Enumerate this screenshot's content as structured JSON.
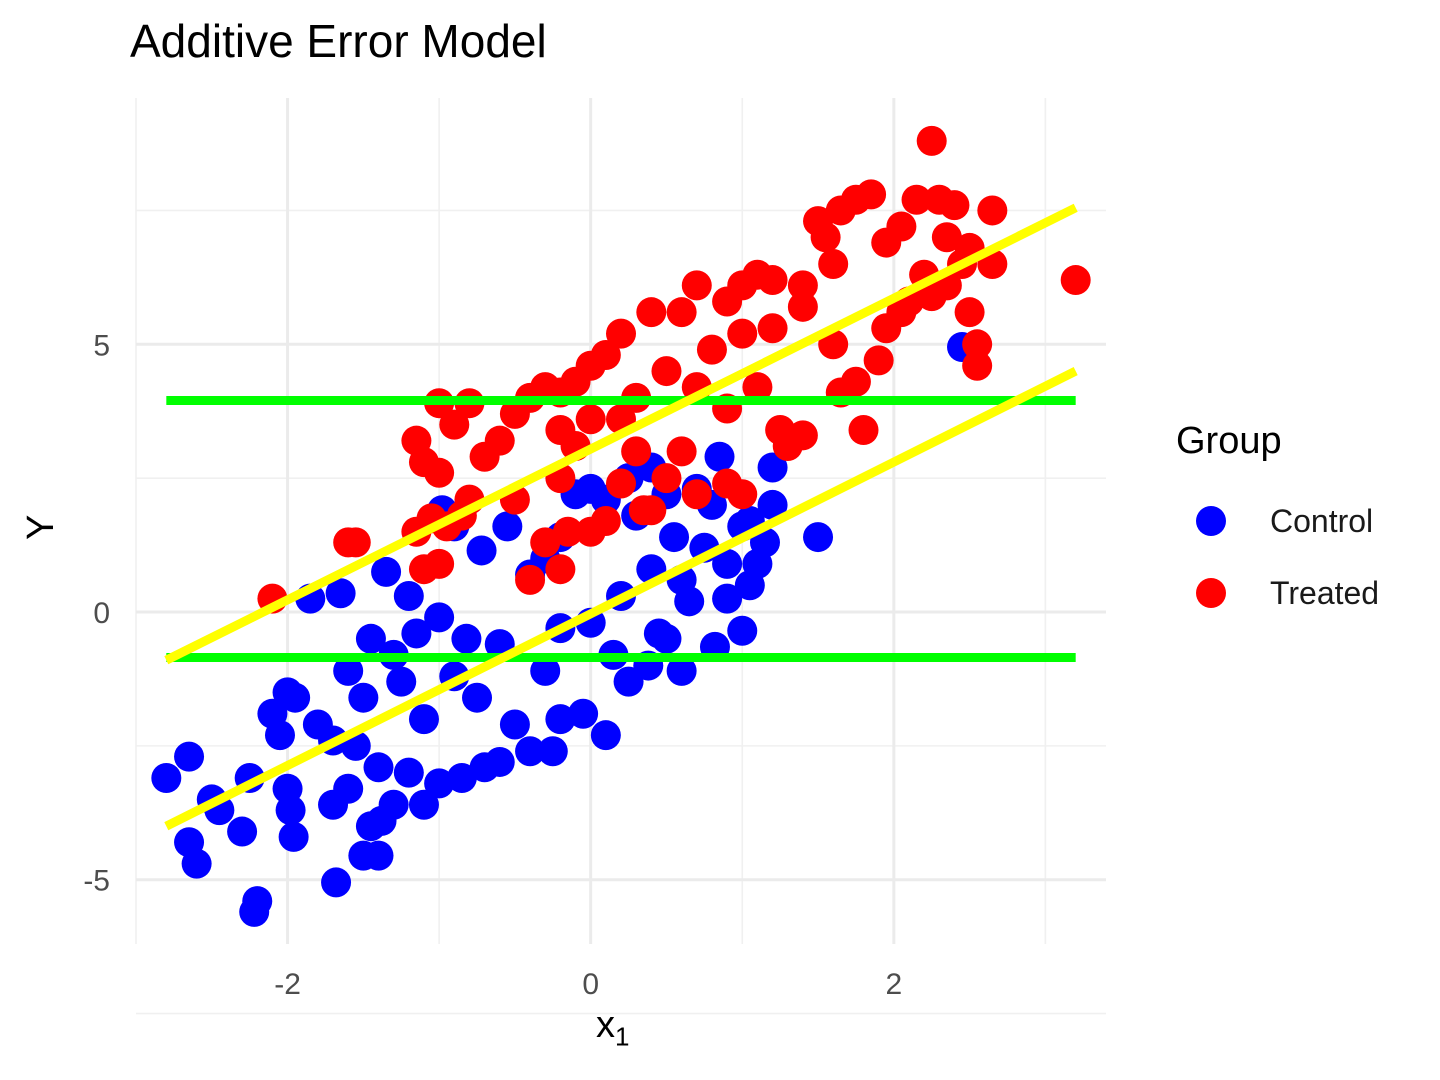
{
  "chart_data": {
    "type": "scatter",
    "title": "Additive Error Model",
    "xlabel": "x",
    "xlabel_sub": "1",
    "ylabel": "Y",
    "xlim": [
      -3.0,
      3.4
    ],
    "ylim": [
      -6.2,
      9.6
    ],
    "x_ticks": [
      -2,
      0,
      2
    ],
    "y_ticks": [
      -5,
      0,
      5
    ],
    "grid": true,
    "legend_position": "right",
    "legend_title": "Group",
    "series": [
      {
        "name": "Control",
        "color": "#0000ff"
      },
      {
        "name": "Treated",
        "color": "#ff0000"
      }
    ],
    "reference_lines": [
      {
        "kind": "horizontal",
        "color": "#00ff00",
        "y": 3.95,
        "x_from": -2.8,
        "x_to": 3.2
      },
      {
        "kind": "horizontal",
        "color": "#00ff00",
        "y": -0.85,
        "x_from": -2.8,
        "x_to": 3.2
      },
      {
        "kind": "fit",
        "color": "#ffff00",
        "x_from": -2.8,
        "y_from": -0.9,
        "x_to": 3.2,
        "y_to": 7.55
      },
      {
        "kind": "fit",
        "color": "#ffff00",
        "x_from": -2.8,
        "y_from": -4.0,
        "x_to": 3.2,
        "y_to": 4.5
      }
    ],
    "points": {
      "Control": [
        [
          -2.8,
          -3.1
        ],
        [
          -2.65,
          -2.7
        ],
        [
          -2.65,
          -4.3
        ],
        [
          -2.6,
          -4.7
        ],
        [
          -2.5,
          -3.5
        ],
        [
          -2.45,
          -3.7
        ],
        [
          -2.3,
          -4.1
        ],
        [
          -2.25,
          -3.1
        ],
        [
          -2.22,
          -5.6
        ],
        [
          -2.2,
          -5.4
        ],
        [
          -2.1,
          -1.9
        ],
        [
          -2.05,
          -2.3
        ],
        [
          -2.0,
          -3.3
        ],
        [
          -1.98,
          -3.7
        ],
        [
          -1.96,
          -4.2
        ],
        [
          -2.0,
          -1.5
        ],
        [
          -1.95,
          -1.6
        ],
        [
          -1.85,
          0.25
        ],
        [
          -1.65,
          0.35
        ],
        [
          -1.68,
          -5.05
        ],
        [
          -1.5,
          -4.55
        ],
        [
          -1.4,
          -4.55
        ],
        [
          -1.6,
          -3.3
        ],
        [
          -1.7,
          -3.6
        ],
        [
          -1.45,
          -4.0
        ],
        [
          -1.38,
          -3.9
        ],
        [
          -1.3,
          -3.6
        ],
        [
          -1.1,
          -3.6
        ],
        [
          -1.35,
          0.75
        ],
        [
          -1.2,
          0.3
        ],
        [
          -1.15,
          -0.4
        ],
        [
          -1.0,
          -0.1
        ],
        [
          -0.98,
          1.9
        ],
        [
          -0.9,
          1.6
        ],
        [
          -0.82,
          -0.5
        ],
        [
          -0.72,
          1.15
        ],
        [
          -0.55,
          1.6
        ],
        [
          -0.4,
          0.7
        ],
        [
          -0.3,
          1.0
        ],
        [
          -0.2,
          1.4
        ],
        [
          -0.1,
          2.2
        ],
        [
          0.0,
          2.3
        ],
        [
          0.1,
          2.1
        ],
        [
          0.25,
          2.5
        ],
        [
          0.4,
          2.7
        ],
        [
          0.5,
          2.2
        ],
        [
          0.55,
          1.4
        ],
        [
          0.6,
          0.6
        ],
        [
          0.65,
          0.2
        ],
        [
          0.75,
          1.2
        ],
        [
          0.8,
          2.0
        ],
        [
          0.85,
          2.9
        ],
        [
          0.9,
          0.9
        ],
        [
          1.0,
          1.6
        ],
        [
          1.05,
          1.7
        ],
        [
          1.1,
          0.9
        ],
        [
          1.2,
          2.0
        ],
        [
          1.2,
          2.7
        ],
        [
          1.15,
          1.3
        ],
        [
          1.05,
          0.5
        ],
        [
          0.9,
          0.25
        ],
        [
          0.82,
          -0.65
        ],
        [
          0.6,
          -1.1
        ],
        [
          0.5,
          -0.5
        ],
        [
          0.38,
          -1.0
        ],
        [
          0.25,
          -1.3
        ],
        [
          0.1,
          -2.3
        ],
        [
          -0.05,
          -1.9
        ],
        [
          -0.2,
          -2.0
        ],
        [
          -0.25,
          -2.6
        ],
        [
          -0.4,
          -2.6
        ],
        [
          -0.5,
          -2.1
        ],
        [
          -0.6,
          -2.8
        ],
        [
          -0.7,
          -2.9
        ],
        [
          -0.85,
          -3.1
        ],
        [
          -1.0,
          -3.2
        ],
        [
          -1.2,
          -3.0
        ],
        [
          -1.4,
          -2.9
        ],
        [
          -1.55,
          -2.5
        ],
        [
          -1.7,
          -2.4
        ],
        [
          -1.8,
          -2.1
        ],
        [
          -1.6,
          -1.1
        ],
        [
          -1.45,
          -0.5
        ],
        [
          -1.3,
          -0.8
        ],
        [
          -1.5,
          -1.6
        ],
        [
          1.5,
          1.4
        ],
        [
          2.45,
          4.95
        ],
        [
          1.0,
          -0.35
        ],
        [
          0.3,
          1.8
        ],
        [
          0.7,
          2.3
        ],
        [
          -0.2,
          -0.3
        ],
        [
          -0.6,
          -0.6
        ],
        [
          -0.9,
          -1.2
        ],
        [
          -1.1,
          -2.0
        ],
        [
          0.0,
          -0.2
        ],
        [
          0.2,
          0.3
        ],
        [
          0.4,
          0.8
        ],
        [
          0.45,
          -0.4
        ],
        [
          0.15,
          -0.8
        ],
        [
          -0.3,
          -1.1
        ],
        [
          -0.75,
          -1.6
        ],
        [
          -1.25,
          -1.3
        ]
      ],
      "Treated": [
        [
          -2.1,
          0.25
        ],
        [
          -1.6,
          1.3
        ],
        [
          -1.55,
          1.3
        ],
        [
          -1.15,
          1.5
        ],
        [
          -1.1,
          0.8
        ],
        [
          -1.0,
          0.9
        ],
        [
          -1.05,
          1.75
        ],
        [
          -0.95,
          1.6
        ],
        [
          -0.85,
          1.8
        ],
        [
          -0.8,
          2.1
        ],
        [
          -1.15,
          3.2
        ],
        [
          -1.1,
          2.8
        ],
        [
          -1.0,
          2.6
        ],
        [
          -1.0,
          3.9
        ],
        [
          -0.9,
          3.5
        ],
        [
          -0.8,
          3.9
        ],
        [
          -0.7,
          2.9
        ],
        [
          -0.6,
          3.2
        ],
        [
          -0.5,
          3.7
        ],
        [
          -0.4,
          4.0
        ],
        [
          -0.3,
          4.2
        ],
        [
          -0.2,
          2.5
        ],
        [
          -0.15,
          1.5
        ],
        [
          -0.3,
          1.3
        ],
        [
          -0.4,
          0.6
        ],
        [
          -0.2,
          0.8
        ],
        [
          0.0,
          1.5
        ],
        [
          0.1,
          1.7
        ],
        [
          0.2,
          2.4
        ],
        [
          0.35,
          1.9
        ],
        [
          0.5,
          2.5
        ],
        [
          0.7,
          2.2
        ],
        [
          0.9,
          2.4
        ],
        [
          1.0,
          2.2
        ],
        [
          1.3,
          3.1
        ],
        [
          1.25,
          3.4
        ],
        [
          1.4,
          3.3
        ],
        [
          1.65,
          4.1
        ],
        [
          1.75,
          4.3
        ],
        [
          1.8,
          3.4
        ],
        [
          1.9,
          4.7
        ],
        [
          1.95,
          5.3
        ],
        [
          2.05,
          5.6
        ],
        [
          2.1,
          5.8
        ],
        [
          2.2,
          6.3
        ],
        [
          2.25,
          5.9
        ],
        [
          2.35,
          6.1
        ],
        [
          2.45,
          6.5
        ],
        [
          2.5,
          5.6
        ],
        [
          2.55,
          5.0
        ],
        [
          2.55,
          4.6
        ],
        [
          2.65,
          6.5
        ],
        [
          2.65,
          7.5
        ],
        [
          2.5,
          6.8
        ],
        [
          2.4,
          7.6
        ],
        [
          2.35,
          7.0
        ],
        [
          2.3,
          7.7
        ],
        [
          2.25,
          8.8
        ],
        [
          2.15,
          7.7
        ],
        [
          2.05,
          7.2
        ],
        [
          1.95,
          6.9
        ],
        [
          1.85,
          7.8
        ],
        [
          1.75,
          7.7
        ],
        [
          1.65,
          7.5
        ],
        [
          1.55,
          7.0
        ],
        [
          1.5,
          7.3
        ],
        [
          1.6,
          6.5
        ],
        [
          1.4,
          6.1
        ],
        [
          1.2,
          6.2
        ],
        [
          1.1,
          6.3
        ],
        [
          1.0,
          6.1
        ],
        [
          0.9,
          5.8
        ],
        [
          0.7,
          6.1
        ],
        [
          0.6,
          5.6
        ],
        [
          0.4,
          5.6
        ],
        [
          0.2,
          5.2
        ],
        [
          0.1,
          4.8
        ],
        [
          0.0,
          4.6
        ],
        [
          -0.1,
          4.3
        ],
        [
          -0.2,
          4.1
        ],
        [
          0.3,
          4.0
        ],
        [
          0.5,
          4.5
        ],
        [
          0.8,
          4.9
        ],
        [
          1.0,
          5.2
        ],
        [
          1.2,
          5.3
        ],
        [
          1.4,
          5.7
        ],
        [
          0.6,
          3.0
        ],
        [
          0.2,
          3.6
        ],
        [
          -0.1,
          3.1
        ],
        [
          0.9,
          3.8
        ],
        [
          1.1,
          4.2
        ],
        [
          1.6,
          5.0
        ],
        [
          3.2,
          6.2
        ],
        [
          0.4,
          1.9
        ],
        [
          -0.5,
          2.1
        ],
        [
          0.7,
          4.2
        ],
        [
          0.0,
          3.6
        ],
        [
          0.3,
          3.0
        ],
        [
          -0.2,
          3.4
        ]
      ]
    }
  }
}
